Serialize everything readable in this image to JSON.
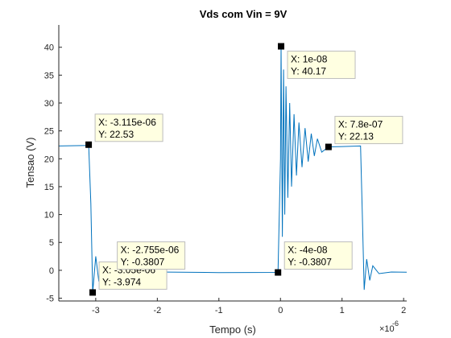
{
  "chart_data": {
    "type": "line",
    "title": "Vds com Vin = 9V",
    "xlabel": "Tempo (s)",
    "ylabel": "Tensao (V)",
    "x_exponent_label": "×10",
    "x_exponent_power": "-6",
    "xlim": [
      -3.6,
      2.05
    ],
    "ylim": [
      -5.5,
      44
    ],
    "x_ticks": [
      -3,
      -2,
      -1,
      0,
      1,
      2
    ],
    "x_tick_labels": [
      "-3",
      "-2",
      "-1",
      "0",
      "1",
      "2"
    ],
    "y_ticks": [
      -5,
      0,
      5,
      10,
      15,
      20,
      25,
      30,
      35,
      40
    ],
    "y_tick_labels": [
      "-5",
      "0",
      "5",
      "10",
      "15",
      "20",
      "25",
      "30",
      "35",
      "40"
    ],
    "grid": false,
    "series": [
      {
        "color": "#0072BD",
        "points": [
          [
            -3.6,
            22.3
          ],
          [
            -3.13,
            22.4
          ],
          [
            -3.115,
            22.53
          ],
          [
            -3.08,
            12
          ],
          [
            -3.05,
            -3.974
          ],
          [
            -3.0,
            2.5
          ],
          [
            -2.95,
            -2.0
          ],
          [
            -2.9,
            1.2
          ],
          [
            -2.85,
            -1.0
          ],
          [
            -2.8,
            0.4
          ],
          [
            -2.755,
            -0.3807
          ],
          [
            -2.0,
            -0.3
          ],
          [
            -1.0,
            -0.4
          ],
          [
            -0.04,
            -0.3807
          ],
          [
            0.0,
            20
          ],
          [
            0.01,
            40.17
          ],
          [
            0.03,
            6
          ],
          [
            0.05,
            36
          ],
          [
            0.07,
            10
          ],
          [
            0.09,
            33
          ],
          [
            0.12,
            13
          ],
          [
            0.15,
            30
          ],
          [
            0.18,
            15
          ],
          [
            0.22,
            28
          ],
          [
            0.26,
            17
          ],
          [
            0.3,
            26.5
          ],
          [
            0.35,
            18.5
          ],
          [
            0.4,
            25.5
          ],
          [
            0.45,
            19.5
          ],
          [
            0.5,
            24.5
          ],
          [
            0.55,
            20.5
          ],
          [
            0.6,
            23.6
          ],
          [
            0.67,
            21.2
          ],
          [
            0.78,
            22.13
          ],
          [
            1.0,
            22.2
          ],
          [
            1.3,
            22.3
          ],
          [
            1.33,
            10
          ],
          [
            1.36,
            -3.5
          ],
          [
            1.4,
            2.0
          ],
          [
            1.45,
            -1.8
          ],
          [
            1.5,
            0.8
          ],
          [
            1.6,
            -0.6
          ],
          [
            1.8,
            -0.3
          ],
          [
            2.05,
            -0.35
          ]
        ]
      }
    ],
    "datatips": [
      {
        "x": -3.115,
        "y": 22.53,
        "x_label": "X: -3.115e-06",
        "y_label": "Y: 22.53"
      },
      {
        "x": -3.05,
        "y": -3.974,
        "x_label": "X: -3.05e-06",
        "y_label": "Y: -3.974"
      },
      {
        "x": -2.755,
        "y": -0.3807,
        "x_label": "X: -2.755e-06",
        "y_label": "Y: -0.3807"
      },
      {
        "x": 0.01,
        "y": 40.17,
        "x_label": "X: 1e-08",
        "y_label": "Y: 40.17"
      },
      {
        "x": -0.04,
        "y": -0.3807,
        "x_label": "X: -4e-08",
        "y_label": "Y: -0.3807"
      },
      {
        "x": 0.78,
        "y": 22.13,
        "x_label": "X: 7.8e-07",
        "y_label": "Y: 22.13"
      }
    ]
  }
}
